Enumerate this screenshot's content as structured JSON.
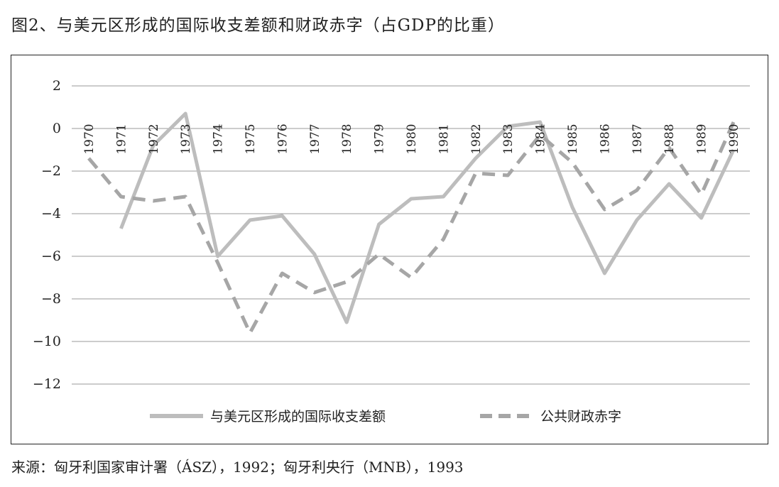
{
  "title": "图2、与美元区形成的国际收支差额和财政赤字（占GDP的比重）",
  "source": "来源：匈牙利国家审计署（ÁSZ），1992；匈牙利央行（MNB），1993",
  "chart_data": {
    "type": "line",
    "title": "图2、与美元区形成的国际收支差额和财政赤字（占GDP的比重）",
    "xlabel": "",
    "ylabel": "",
    "ylim": [
      -12,
      2
    ],
    "yticks": [
      2,
      0,
      -2,
      -4,
      -6,
      -8,
      -10,
      -12
    ],
    "ytick_labels": [
      "2",
      "0",
      "−2",
      "−4",
      "−6",
      "−8",
      "−10",
      "−12"
    ],
    "categories": [
      "1970",
      "1971",
      "1972",
      "1973",
      "1974",
      "1975",
      "1976",
      "1977",
      "1978",
      "1979",
      "1980",
      "1981",
      "1982",
      "1983",
      "1984",
      "1985",
      "1986",
      "1987",
      "1988",
      "1989",
      "1990"
    ],
    "grid": true,
    "legend_position": "bottom",
    "series": [
      {
        "name": "与美元区形成的国际收支差额",
        "style": "solid",
        "color": "#bdbdbd",
        "values": [
          null,
          -4.7,
          -0.8,
          0.7,
          -6.0,
          -4.3,
          -4.1,
          -5.9,
          -9.1,
          -4.5,
          -3.3,
          -3.2,
          -1.4,
          0.1,
          0.3,
          -3.7,
          -6.8,
          -4.3,
          -2.6,
          -4.2,
          -1.0
        ]
      },
      {
        "name": "公共财政赤字",
        "style": "dashed",
        "color": "#a6a6a6",
        "values": [
          -1.4,
          -3.2,
          -3.4,
          -3.2,
          -6.3,
          -9.6,
          -6.8,
          -7.7,
          -7.2,
          -5.9,
          -7.0,
          -5.2,
          -2.1,
          -2.2,
          -0.3,
          -1.6,
          -3.8,
          -2.9,
          -0.9,
          -3.1,
          0.3
        ]
      }
    ]
  }
}
